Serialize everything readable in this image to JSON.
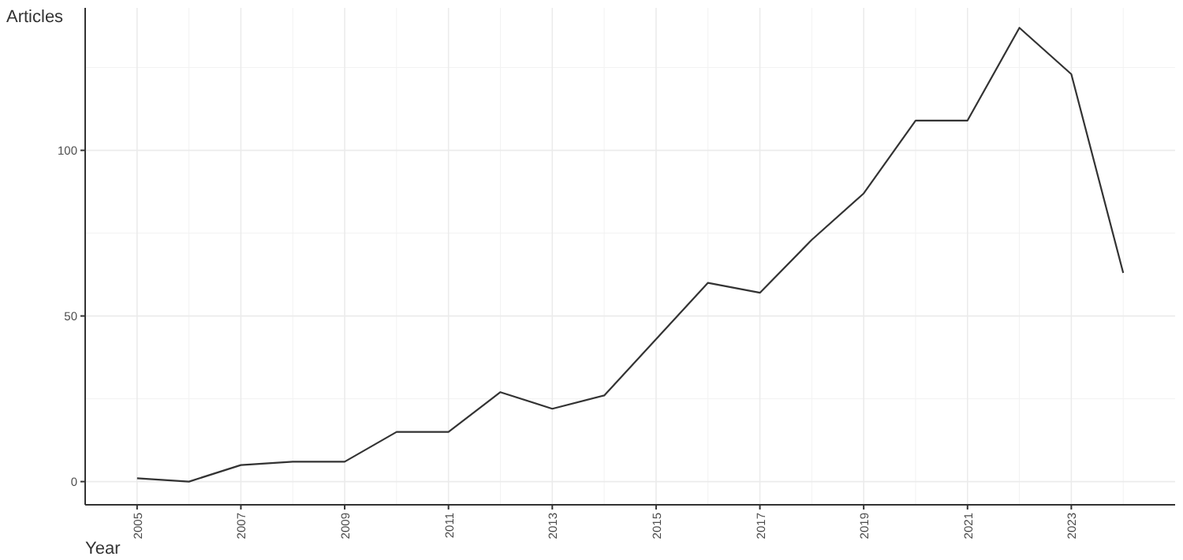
{
  "chart_data": {
    "type": "line",
    "xlabel": "Year",
    "ylabel": "Articles",
    "x": [
      2005,
      2006,
      2007,
      2008,
      2009,
      2010,
      2011,
      2012,
      2013,
      2014,
      2015,
      2016,
      2017,
      2018,
      2019,
      2020,
      2021,
      2022,
      2023,
      2024
    ],
    "series": [
      {
        "color": "#333333",
        "values": [
          1,
          0,
          5,
          6,
          6,
          15,
          15,
          27,
          22,
          26,
          43,
          60,
          57,
          73,
          87,
          109,
          109,
          137,
          123,
          63
        ]
      }
    ],
    "xlim": [
      2004,
      2025
    ],
    "xticks": [
      2005,
      2007,
      2009,
      2011,
      2013,
      2015,
      2017,
      2019,
      2021,
      2023
    ],
    "ylim": [
      -7,
      143
    ],
    "yticks": [
      0,
      50,
      100
    ],
    "grid": true,
    "marker": "none",
    "line_style": "solid"
  }
}
